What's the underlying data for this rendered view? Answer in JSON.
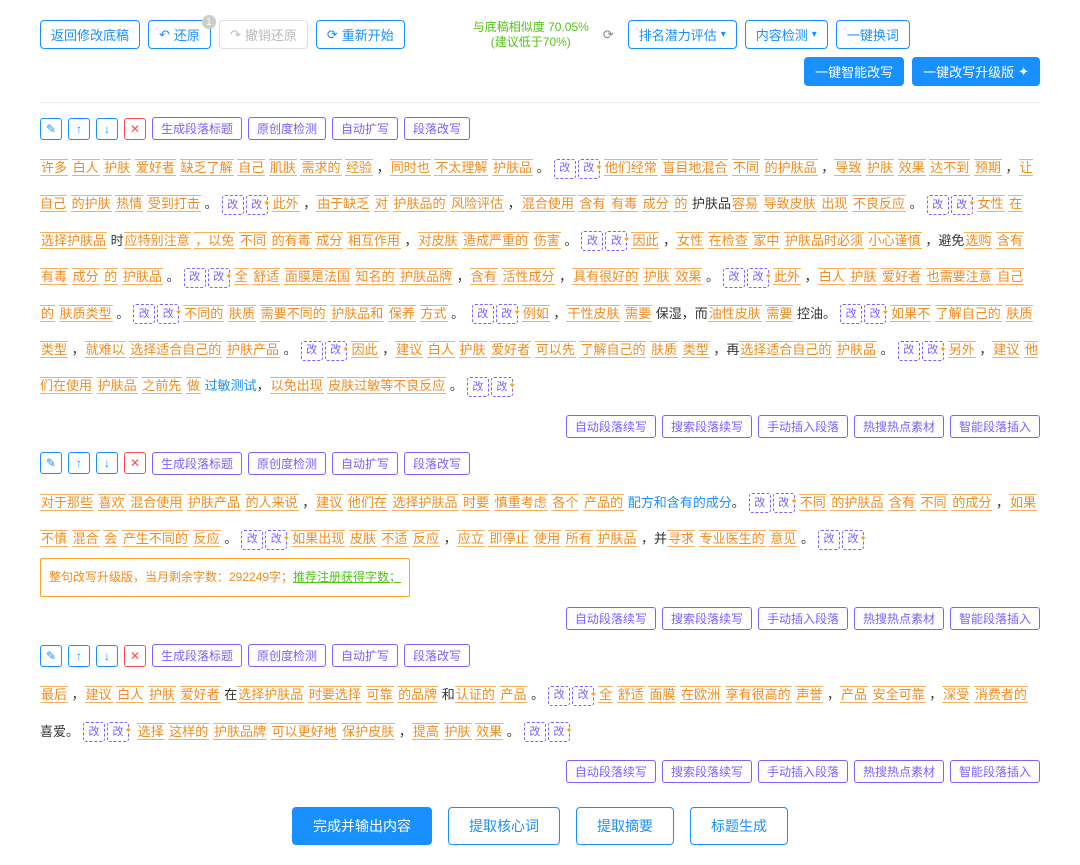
{
  "topbar": {
    "back": "返回修改底稿",
    "undo": "还原",
    "undo_badge": "1",
    "redo": "撤销还原",
    "restart": "重新开始",
    "sim_line1": "与底稿相似度 70.05%",
    "sim_line2": "(建议低于70%)",
    "rank": "排名潜力评估",
    "content_check": "内容检测",
    "swap_word": "一键换词",
    "smart_rewrite": "一键智能改写",
    "upgrade": "一键改写升级版"
  },
  "tools": {
    "gen_title": "生成段落标题",
    "orig_check": "原创度检测",
    "auto_expand": "自动扩写",
    "para_rewrite": "段落改写"
  },
  "chg_label": "改",
  "footer": {
    "auto_cont": "自动段落续写",
    "search_cont": "搜索段落续写",
    "manual_ins": "手动插入段落",
    "hot_material": "热搜热点素材",
    "smart_ins": "智能段落插入"
  },
  "bottom": {
    "finish": "完成并输出内容",
    "keywords": "提取核心词",
    "summary": "提取摘要",
    "title_gen": "标题生成"
  },
  "note": {
    "prefix": "整句改写升级版，当月剩余字数：292249字；",
    "link": "推荐注册获得字数；"
  },
  "p1": [
    "许多",
    "白人",
    "护肤",
    "爱好者",
    "缺乏了解",
    "自己",
    "肌肤",
    "需求的",
    "经验",
    "，",
    "同时也",
    "不太理解",
    "护肤品",
    "。"
  ],
  "p1b": [
    "他们经常",
    "盲目地混合",
    "不同",
    "的护肤品",
    "，",
    "导致",
    "护肤",
    "效果",
    "达不到",
    "预期",
    "，",
    "让自己",
    "的护肤",
    "热情"
  ],
  "p1c": [
    "受到打击",
    "。"
  ],
  "p1d": [
    "此外",
    "，",
    "由于缺乏",
    "对",
    "护肤品的",
    "风险评估",
    "，",
    "混合使用",
    "含有",
    "有毒",
    "成分",
    "的",
    "护肤品",
    "容易",
    "导致皮肤",
    "出现",
    "不良反应",
    "。"
  ],
  "p1e": [
    "女性",
    "在",
    "选择护肤品",
    "时",
    "应特别注意",
    "，以免"
  ],
  "p1f": [
    "不同",
    "的有毒",
    "成分",
    "相互作用",
    "，",
    "对皮肤",
    "造成严重的",
    "伤害",
    "。"
  ],
  "p1g": [
    "因此",
    "，",
    "女性",
    "在检查",
    "家中",
    "护肤品时必须",
    "小心谨慎",
    "，",
    "避免",
    "选购",
    "含有",
    "有毒",
    "成分",
    "的",
    "护肤品",
    "。"
  ],
  "p1h": [
    "全",
    "舒适",
    "面膜是法国"
  ],
  "p1i": [
    "知名的",
    "护肤品牌",
    "，",
    "含有",
    "活性成分",
    "，",
    "具有很好的",
    "护肤",
    "效果",
    "。"
  ],
  "p1j": [
    "此外",
    "，",
    "白人",
    "护肤",
    "爱好者",
    "也需要注意",
    "自己",
    "的",
    "肤质类型",
    "。"
  ],
  "p1k": [
    "不同的",
    "肤质",
    "需要不同的",
    "护肤品和",
    "保养",
    "方式",
    "。"
  ],
  "p1l": [
    "例如",
    "，",
    "干性皮肤",
    "需要",
    "保湿",
    "，而",
    "油性皮肤",
    "需要",
    "控油",
    "。"
  ],
  "p1m": [
    "如果不",
    "了解自己的",
    "肤质",
    "类型",
    "，",
    "就难以",
    "选择适合自己的",
    "护肤产品",
    "。"
  ],
  "p1n": [
    "因此",
    "，",
    "建议",
    "白人",
    "护肤",
    "爱好者"
  ],
  "p1o": [
    "可以先",
    "了解自己的",
    "肤质",
    "类型",
    "，再",
    "选择适合自己的",
    "护肤品",
    "。"
  ],
  "p1p": [
    "另外",
    "，",
    "建议",
    "他们在使用",
    "护肤品",
    "之前先",
    "做",
    "过敏测试",
    "，",
    "以免出现",
    "皮肤过敏等不良反应",
    "。"
  ],
  "p2a": [
    "对于那些",
    "喜欢",
    "混合使用",
    "护肤产品",
    "的人来说",
    "，",
    "建议",
    "他们在",
    "选择护肤品",
    "时要",
    "慎重考虑",
    "各个",
    "产品的",
    "配方和",
    "含有的成分",
    "。"
  ],
  "p2b": [
    "不同",
    "的护肤品",
    "含有",
    "不同",
    "的成分",
    "，",
    "如果",
    "不慎",
    "混合",
    "会"
  ],
  "p2c": [
    "产生不同的",
    "反应",
    "。"
  ],
  "p2d": [
    "如果出现",
    "皮肤",
    "不适",
    "反应",
    "，",
    "应立",
    "即停止",
    "使用",
    "所有",
    "护肤品",
    "，并",
    "寻求",
    "专业医生的",
    "意见",
    "。"
  ],
  "p3a": [
    "最后",
    "，",
    "建议",
    "白人",
    "护肤",
    "爱好者",
    "在",
    "选择护肤品",
    "时要选择",
    "可靠",
    "的品牌",
    "和",
    "认证的",
    "产品",
    "。"
  ],
  "p3b": [
    "全",
    "舒适",
    "面膜",
    "在欧洲",
    "享有很高的",
    "声誉",
    "，",
    "产品",
    "安全可靠",
    "，",
    "深受",
    "消费者的",
    "喜爱",
    "。"
  ],
  "p3c": [
    "选择",
    "这样的",
    "护肤品牌",
    "可以更好地",
    "保护皮肤",
    "，",
    "提高",
    "护肤",
    "效果",
    "。"
  ]
}
